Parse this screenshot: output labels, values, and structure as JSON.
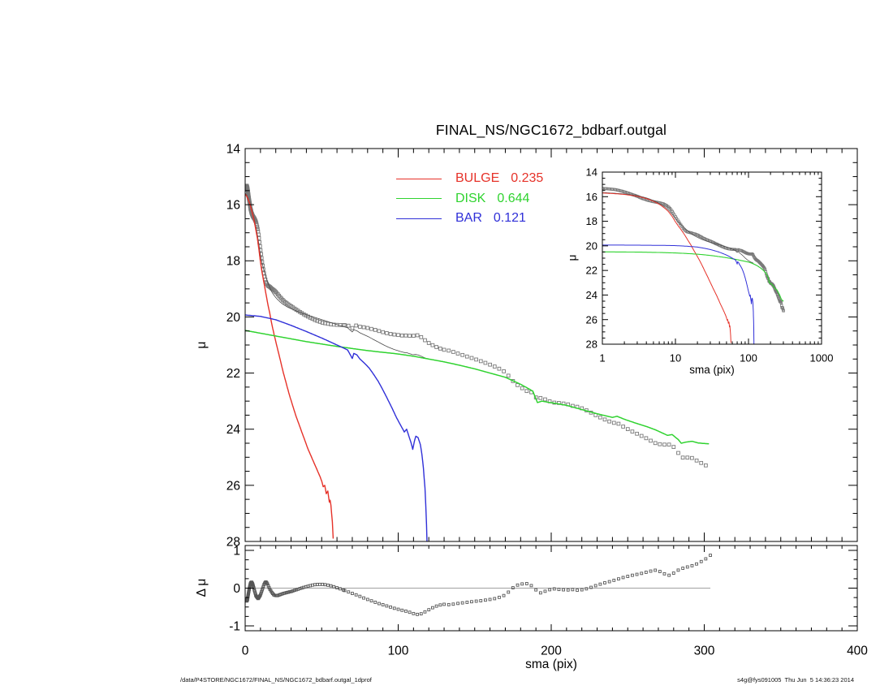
{
  "title": "FINAL_NS/NGC1672_bdbarf.outgal",
  "footer": {
    "left": "/data/P4STORE/NGC1672/FINAL_NS/NGC1672_bdbarf.outgal_1dprof",
    "right": "s4g@fys091005  Thu Jun  5 14:36:23 2014"
  },
  "legend": [
    {
      "label": "BULGE",
      "value": "0.235",
      "color": "#e63229"
    },
    {
      "label": "DISK",
      "value": "0.644",
      "color": "#2fd32f"
    },
    {
      "label": "BAR",
      "value": "0.121",
      "color": "#3030d8"
    }
  ],
  "chart_data": {
    "type": "line",
    "title": "FINAL_NS/NGC1672_bdbarf.outgal",
    "main_panel": {
      "ylabel": "μ",
      "xlim": [
        0,
        400
      ],
      "ylim": [
        28,
        14
      ],
      "xticks": [
        0,
        100,
        200,
        300,
        400
      ],
      "yticks": [
        14,
        16,
        18,
        20,
        22,
        24,
        26,
        28
      ],
      "x_minor_step": 10,
      "y_minor_step": 0.5
    },
    "residual_panel": {
      "ylabel": "Δ μ",
      "xlabel": "sma (pix)",
      "xlim": [
        0,
        400
      ],
      "ylim": [
        -1,
        1
      ],
      "xticks": [
        0,
        100,
        200,
        300,
        400
      ],
      "yticks": [
        1,
        0,
        -1
      ],
      "y_minors": [
        -0.75,
        -0.5,
        -0.25,
        0.25,
        0.5,
        0.75
      ],
      "zero_line": true
    },
    "inset_panel": {
      "ylabel": "μ",
      "xlabel": "sma (pix)",
      "xscale": "log",
      "xlim": [
        1,
        1000
      ],
      "ylim": [
        28,
        14
      ],
      "xticks": [
        1,
        10,
        100,
        1000
      ],
      "yticks": [
        14,
        16,
        18,
        20,
        22,
        24,
        26,
        28
      ]
    },
    "series": {
      "bulge": [
        [
          0,
          15.62
        ],
        [
          1,
          15.7
        ],
        [
          2,
          15.82
        ],
        [
          3,
          15.97
        ],
        [
          4,
          16.15
        ],
        [
          5,
          16.37
        ],
        [
          6,
          16.62
        ],
        [
          7,
          16.9
        ],
        [
          8,
          17.2
        ],
        [
          9,
          17.6
        ],
        [
          10,
          18.05
        ],
        [
          11,
          18.4
        ],
        [
          12,
          18.7
        ],
        [
          13,
          19.0
        ],
        [
          14,
          19.3
        ],
        [
          15,
          19.6
        ],
        [
          16,
          19.85
        ],
        [
          17.5,
          20.28
        ],
        [
          19,
          20.65
        ],
        [
          21,
          21.1
        ],
        [
          23,
          21.55
        ],
        [
          25,
          22.0
        ],
        [
          27,
          22.4
        ],
        [
          29,
          22.8
        ],
        [
          31,
          23.15
        ],
        [
          33,
          23.5
        ],
        [
          35,
          23.8
        ],
        [
          37,
          24.1
        ],
        [
          39,
          24.4
        ],
        [
          41,
          24.7
        ],
        [
          43,
          24.95
        ],
        [
          45,
          25.2
        ],
        [
          47,
          25.45
        ],
        [
          49,
          25.7
        ],
        [
          50,
          25.85
        ],
        [
          51,
          26.05
        ],
        [
          52,
          26.0
        ],
        [
          53,
          26.3
        ],
        [
          54,
          26.2
        ],
        [
          55,
          26.6
        ],
        [
          55.7,
          26.5
        ],
        [
          56.3,
          26.9
        ],
        [
          57,
          27.3
        ],
        [
          57.5,
          27.9
        ],
        [
          57.8,
          28.4
        ]
      ],
      "disk": [
        [
          0,
          20.48
        ],
        [
          20,
          20.68
        ],
        [
          40,
          20.88
        ],
        [
          60,
          21.05
        ],
        [
          80,
          21.2
        ],
        [
          100,
          21.32
        ],
        [
          110,
          21.4
        ],
        [
          120,
          21.5
        ],
        [
          130,
          21.6
        ],
        [
          140,
          21.72
        ],
        [
          150,
          21.85
        ],
        [
          160,
          22.0
        ],
        [
          170,
          22.15
        ],
        [
          180,
          22.4
        ],
        [
          185,
          22.55
        ],
        [
          188,
          22.65
        ],
        [
          191,
          23.05
        ],
        [
          194,
          23.0
        ],
        [
          199,
          23.05
        ],
        [
          205,
          23.1
        ],
        [
          210,
          23.15
        ],
        [
          220,
          23.3
        ],
        [
          230,
          23.45
        ],
        [
          240,
          23.58
        ],
        [
          243,
          23.54
        ],
        [
          248,
          23.65
        ],
        [
          255,
          23.78
        ],
        [
          262,
          23.9
        ],
        [
          268,
          24.02
        ],
        [
          272,
          24.12
        ],
        [
          276,
          24.22
        ],
        [
          279,
          24.19
        ],
        [
          283,
          24.37
        ],
        [
          285,
          24.5
        ],
        [
          288,
          24.46
        ],
        [
          292,
          24.43
        ],
        [
          296,
          24.49
        ],
        [
          300,
          24.51
        ],
        [
          303,
          24.52
        ]
      ],
      "bar": [
        [
          0,
          19.93
        ],
        [
          10,
          19.98
        ],
        [
          20,
          20.1
        ],
        [
          30,
          20.3
        ],
        [
          40,
          20.52
        ],
        [
          50,
          20.75
        ],
        [
          58,
          20.95
        ],
        [
          64,
          21.1
        ],
        [
          67,
          21.18
        ],
        [
          69,
          21.38
        ],
        [
          70,
          21.48
        ],
        [
          71,
          21.3
        ],
        [
          73,
          21.35
        ],
        [
          75,
          21.5
        ],
        [
          78,
          21.65
        ],
        [
          81,
          21.82
        ],
        [
          84,
          22.05
        ],
        [
          87,
          22.3
        ],
        [
          90,
          22.6
        ],
        [
          93,
          22.92
        ],
        [
          96,
          23.25
        ],
        [
          99,
          23.6
        ],
        [
          102,
          23.9
        ],
        [
          104,
          24.1
        ],
        [
          105.5,
          24.0
        ],
        [
          107,
          24.25
        ],
        [
          108.5,
          24.5
        ],
        [
          109.5,
          24.72
        ],
        [
          110.5,
          24.45
        ],
        [
          111.5,
          24.25
        ],
        [
          113,
          24.3
        ],
        [
          114.5,
          24.55
        ],
        [
          115.5,
          24.9
        ],
        [
          116.5,
          25.4
        ],
        [
          117.5,
          26.1
        ],
        [
          118.3,
          27.0
        ],
        [
          119,
          28.4
        ]
      ],
      "residual": [
        [
          0.5,
          -0.38
        ],
        [
          1.5,
          -0.3
        ],
        [
          2.5,
          -0.05
        ],
        [
          3.5,
          0.13
        ],
        [
          4.2,
          0.16
        ],
        [
          5,
          0.1
        ],
        [
          6,
          -0.05
        ],
        [
          7,
          -0.2
        ],
        [
          8.5,
          -0.28
        ],
        [
          10,
          -0.18
        ],
        [
          11.5,
          0
        ],
        [
          12.5,
          0.12
        ],
        [
          13.5,
          0.17
        ],
        [
          14.5,
          0.12
        ],
        [
          16,
          -0.02
        ],
        [
          17.5,
          -0.12
        ],
        [
          19,
          -0.19
        ],
        [
          21,
          -0.2
        ],
        [
          23,
          -0.17
        ],
        [
          25,
          -0.14
        ],
        [
          27,
          -0.12
        ],
        [
          30,
          -0.09
        ],
        [
          33,
          -0.05
        ],
        [
          36,
          -0.01
        ],
        [
          39,
          0.03
        ],
        [
          42,
          0.06
        ],
        [
          45,
          0.09
        ],
        [
          48,
          0.1
        ],
        [
          51,
          0.1
        ],
        [
          54,
          0.08
        ],
        [
          57,
          0.05
        ],
        [
          60,
          0.01
        ],
        [
          63,
          -0.03
        ],
        [
          66,
          -0.08
        ],
        [
          70,
          -0.14
        ],
        [
          74,
          -0.2
        ],
        [
          78,
          -0.27
        ],
        [
          82,
          -0.33
        ],
        [
          86,
          -0.39
        ],
        [
          90,
          -0.44
        ],
        [
          94,
          -0.49
        ],
        [
          98,
          -0.54
        ],
        [
          102,
          -0.58
        ],
        [
          106,
          -0.62
        ],
        [
          109,
          -0.66
        ],
        [
          112,
          -0.7
        ],
        [
          115,
          -0.68
        ],
        [
          118,
          -0.62
        ],
        [
          121,
          -0.55
        ],
        [
          124,
          -0.49
        ],
        [
          127,
          -0.45
        ],
        [
          130,
          -0.43
        ],
        [
          134,
          -0.44
        ],
        [
          138,
          -0.41
        ],
        [
          142,
          -0.39
        ],
        [
          146,
          -0.37
        ],
        [
          150,
          -0.35
        ],
        [
          155,
          -0.33
        ],
        [
          160,
          -0.3
        ],
        [
          164,
          -0.27
        ],
        [
          168,
          -0.22
        ],
        [
          171,
          -0.15
        ],
        [
          174,
          -0.02
        ],
        [
          177,
          0.07
        ],
        [
          180,
          0.1
        ],
        [
          183,
          0.13
        ],
        [
          186,
          0.1
        ],
        [
          189,
          0
        ],
        [
          192,
          -0.14
        ],
        [
          195,
          -0.1
        ],
        [
          198,
          -0.05
        ],
        [
          202,
          -0.02
        ],
        [
          206,
          -0.04
        ],
        [
          210,
          -0.05
        ],
        [
          214,
          -0.04
        ],
        [
          218,
          -0.06
        ],
        [
          222,
          -0.03
        ],
        [
          226,
          0.02
        ],
        [
          230,
          0.08
        ],
        [
          234,
          0.13
        ],
        [
          238,
          0.17
        ],
        [
          242,
          0.22
        ],
        [
          246,
          0.27
        ],
        [
          250,
          0.31
        ],
        [
          254,
          0.35
        ],
        [
          258,
          0.38
        ],
        [
          262,
          0.42
        ],
        [
          266,
          0.46
        ],
        [
          269,
          0.48
        ],
        [
          272,
          0.42
        ],
        [
          275,
          0.36
        ],
        [
          278,
          0.33
        ],
        [
          281,
          0.43
        ],
        [
          284,
          0.5
        ],
        [
          287,
          0.54
        ],
        [
          290,
          0.57
        ],
        [
          294,
          0.62
        ],
        [
          297,
          0.68
        ],
        [
          300,
          0.75
        ],
        [
          302,
          0.8
        ],
        [
          304,
          0.87
        ]
      ],
      "data_rule": "data_mu(s) = -2.5*log10(flux(bulge)+flux(disk)+flux(bar)) + residual(s)"
    },
    "sampling": {
      "geom_start": 1,
      "geom_ratio": 1.035,
      "geom_end": 65,
      "mid_step": 2.5,
      "mid_end": 130,
      "outer_step": 3,
      "outer_end": 304
    },
    "styles": {
      "data_marker": "#787878",
      "residual_marker": "#565656",
      "total_line": "#4a4a4a",
      "zero_line": "#a0a0a0",
      "axis": "#000000",
      "background": "#ffffff"
    }
  }
}
